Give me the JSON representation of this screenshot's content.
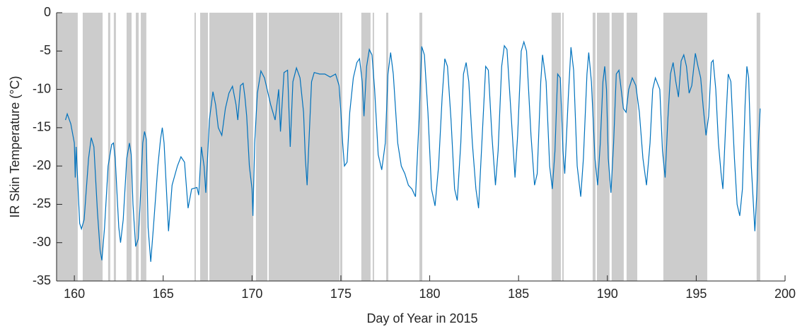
{
  "chart_data": {
    "type": "line",
    "xlabel": "Day of Year in 2015",
    "ylabel": "IR Skin Temperature (°C)",
    "color": "#0072bd",
    "shade_color": "#cccccc",
    "xlim": [
      159,
      200
    ],
    "xticks": [
      160,
      165,
      170,
      175,
      180,
      185,
      190,
      195,
      200
    ],
    "ylim": [
      -35,
      0
    ],
    "yticks": [
      -35,
      -30,
      -25,
      -20,
      -15,
      -10,
      -5,
      0
    ],
    "shaded_regions": [
      [
        159.0,
        160.19
      ],
      [
        160.47,
        161.59
      ],
      [
        161.9,
        162.02
      ],
      [
        162.22,
        162.34
      ],
      [
        162.94,
        163.22
      ],
      [
        163.46,
        163.62
      ],
      [
        163.74,
        164.05
      ],
      [
        166.76,
        166.84
      ],
      [
        167.08,
        167.52
      ],
      [
        167.6,
        170.07
      ],
      [
        170.22,
        170.86
      ],
      [
        170.94,
        174.92
      ],
      [
        174.96,
        175.08
      ],
      [
        176.15,
        176.67
      ],
      [
        176.79,
        176.87
      ],
      [
        177.55,
        177.67
      ],
      [
        179.42,
        179.58
      ],
      [
        186.86,
        187.38
      ],
      [
        187.46,
        187.54
      ],
      [
        189.17,
        189.33
      ],
      [
        189.41,
        190.12
      ],
      [
        190.24,
        190.92
      ],
      [
        191.08,
        191.68
      ],
      [
        193.15,
        195.62
      ],
      [
        198.4,
        198.6
      ]
    ],
    "x": [
      159.5,
      159.6,
      159.8,
      160.0,
      160.05,
      160.1,
      160.3,
      160.4,
      160.55,
      160.8,
      160.95,
      161.1,
      161.3,
      161.45,
      161.55,
      161.7,
      161.9,
      162.1,
      162.2,
      162.3,
      162.5,
      162.6,
      162.75,
      162.95,
      163.1,
      163.2,
      163.3,
      163.45,
      163.6,
      163.7,
      163.85,
      163.95,
      164.05,
      164.15,
      164.3,
      164.45,
      164.7,
      164.85,
      164.95,
      165.05,
      165.3,
      165.5,
      165.8,
      166.0,
      166.2,
      166.4,
      166.6,
      166.9,
      167.0,
      167.15,
      167.3,
      167.4,
      167.6,
      167.8,
      167.95,
      168.1,
      168.3,
      168.5,
      168.7,
      168.9,
      169.1,
      169.2,
      169.35,
      169.5,
      169.6,
      169.7,
      169.85,
      170.0,
      170.05,
      170.15,
      170.3,
      170.5,
      170.7,
      170.9,
      171.05,
      171.3,
      171.5,
      171.6,
      171.8,
      172.0,
      172.15,
      172.3,
      172.5,
      172.7,
      172.9,
      173.0,
      173.1,
      173.2,
      173.35,
      173.5,
      173.8,
      174.1,
      174.4,
      174.7,
      174.9,
      175.0,
      175.1,
      175.2,
      175.35,
      175.5,
      175.7,
      175.9,
      176.05,
      176.2,
      176.3,
      176.45,
      176.6,
      176.75,
      176.9,
      177.1,
      177.3,
      177.5,
      177.65,
      177.8,
      177.95,
      178.2,
      178.4,
      178.6,
      178.8,
      179.0,
      179.2,
      179.4,
      179.55,
      179.7,
      179.9,
      180.1,
      180.3,
      180.5,
      180.7,
      180.85,
      181.0,
      181.2,
      181.4,
      181.55,
      181.75,
      181.9,
      182.05,
      182.2,
      182.4,
      182.6,
      182.75,
      183.0,
      183.15,
      183.3,
      183.5,
      183.7,
      183.85,
      184.05,
      184.2,
      184.35,
      184.6,
      184.8,
      184.95,
      185.15,
      185.3,
      185.45,
      185.7,
      185.9,
      186.05,
      186.25,
      186.35,
      186.55,
      186.75,
      186.9,
      187.05,
      187.2,
      187.35,
      187.5,
      187.6,
      187.8,
      187.95,
      188.1,
      188.3,
      188.5,
      188.65,
      188.85,
      188.95,
      189.1,
      189.3,
      189.45,
      189.6,
      189.75,
      189.85,
      189.95,
      190.05,
      190.2,
      190.35,
      190.5,
      190.65,
      190.75,
      190.9,
      191.05,
      191.2,
      191.4,
      191.6,
      191.8,
      192.0,
      192.2,
      192.4,
      192.55,
      192.7,
      192.95,
      193.1,
      193.25,
      193.4,
      193.55,
      193.7,
      193.85,
      194.0,
      194.15,
      194.3,
      194.45,
      194.6,
      194.75,
      194.95,
      195.1,
      195.25,
      195.4,
      195.55,
      195.7,
      195.85,
      195.95,
      196.1,
      196.25,
      196.4,
      196.5,
      196.65,
      196.8,
      196.95,
      197.15,
      197.3,
      197.45,
      197.6,
      197.75,
      197.85,
      197.95,
      198.1,
      198.3,
      198.4,
      198.5,
      198.6
    ],
    "values": [
      -14,
      -13.2,
      -14.5,
      -17,
      -21.5,
      -17.5,
      -27.5,
      -28.2,
      -27,
      -19,
      -16.3,
      -17.5,
      -26,
      -31,
      -32.3,
      -28,
      -20,
      -17.2,
      -17,
      -19,
      -28,
      -30,
      -27,
      -19,
      -17,
      -18.5,
      -25,
      -30.5,
      -29.5,
      -25,
      -17,
      -15.5,
      -16.5,
      -28,
      -32.5,
      -28,
      -20,
      -16.5,
      -15,
      -17,
      -28.5,
      -22.5,
      -20,
      -18.8,
      -19.5,
      -25.5,
      -23,
      -22.8,
      -23.8,
      -17.5,
      -20,
      -23.5,
      -14,
      -10.3,
      -12,
      -15,
      -16,
      -12.5,
      -10.5,
      -9.6,
      -12,
      -14,
      -9.5,
      -9.2,
      -11,
      -13.5,
      -20,
      -23,
      -26.5,
      -17,
      -10.5,
      -7.6,
      -8.5,
      -10.5,
      -12,
      -14,
      -10,
      -15.5,
      -7.8,
      -7.5,
      -17.5,
      -9,
      -7.2,
      -8.5,
      -13,
      -19,
      -22.5,
      -17,
      -9,
      -7.8,
      -8,
      -8,
      -8.4,
      -8,
      -9.5,
      -13,
      -17,
      -20,
      -19.5,
      -13,
      -8.5,
      -6.5,
      -6,
      -9,
      -13.5,
      -7,
      -4.8,
      -5.5,
      -10,
      -18.5,
      -20.5,
      -17,
      -8,
      -5.2,
      -8,
      -17,
      -20,
      -21,
      -22.5,
      -23,
      -24,
      -14,
      -4.4,
      -5.5,
      -13,
      -23,
      -25.2,
      -20,
      -11,
      -6,
      -7,
      -14,
      -23,
      -24.5,
      -17,
      -8,
      -6.5,
      -9,
      -17,
      -23,
      -25.5,
      -14,
      -7,
      -7.5,
      -16,
      -22.5,
      -18,
      -7,
      -4.3,
      -4.8,
      -14,
      -21.5,
      -16,
      -5,
      -3.8,
      -5,
      -16,
      -22.5,
      -21,
      -9,
      -5.5,
      -9,
      -20,
      -23,
      -18,
      -8,
      -8.5,
      -18,
      -21,
      -11,
      -4.5,
      -7.5,
      -20,
      -24,
      -19,
      -8,
      -5.2,
      -9,
      -19,
      -22.5,
      -17,
      -9,
      -7,
      -10,
      -19,
      -23.5,
      -17,
      -8,
      -7.5,
      -9.5,
      -12.5,
      -13,
      -10,
      -8.5,
      -9.5,
      -13,
      -19,
      -22.5,
      -17,
      -10,
      -8.5,
      -10,
      -18,
      -21.5,
      -14,
      -8,
      -6.5,
      -9,
      -11,
      -6.3,
      -5.5,
      -7,
      -10.5,
      -9.5,
      -5.3,
      -7,
      -8.5,
      -12.5,
      -16,
      -13.5,
      -6.5,
      -6.2,
      -10,
      -17,
      -21,
      -23,
      -15,
      -8,
      -9,
      -19,
      -25,
      -26.5,
      -23,
      -12,
      -7,
      -8.5,
      -20,
      -28.5,
      -24,
      -17,
      -12.5
    ]
  }
}
